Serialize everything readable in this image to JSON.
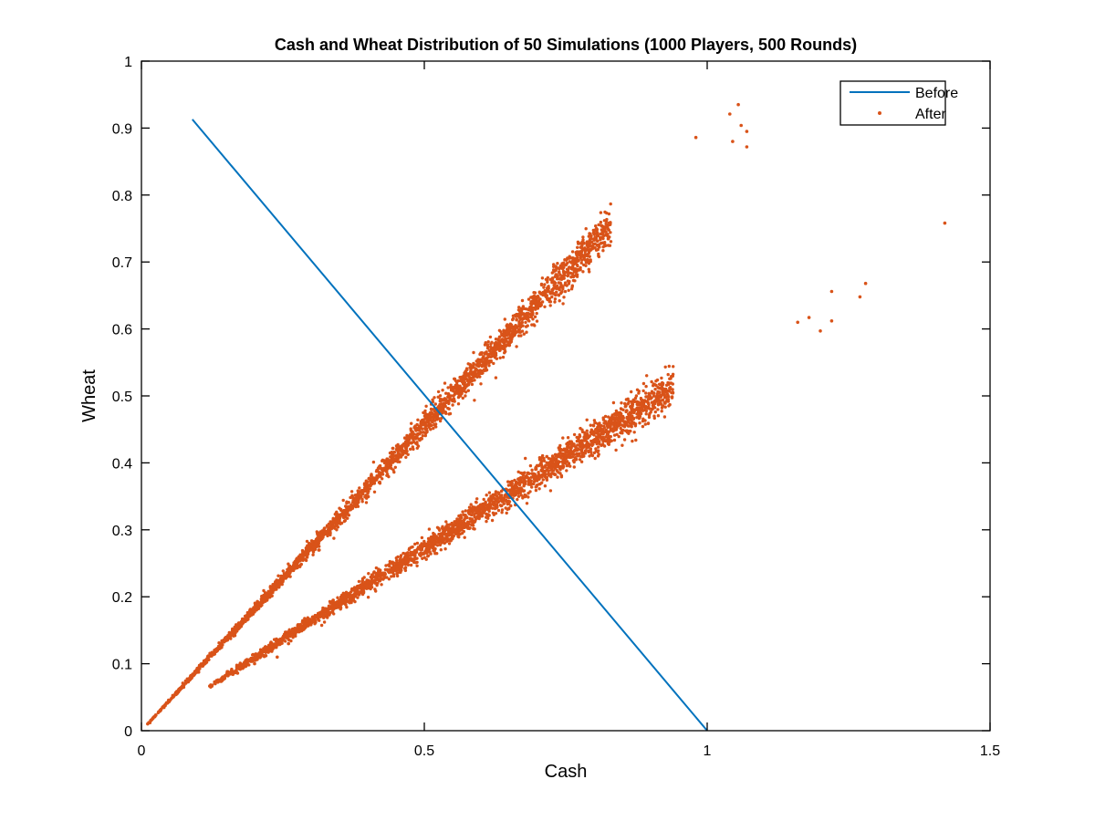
{
  "chart_data": {
    "type": "scatter",
    "title": "Cash and Wheat Distribution of 50 Simulations (1000 Players, 500 Rounds)",
    "xlabel": "Cash",
    "ylabel": "Wheat",
    "xlim": [
      0,
      1.5
    ],
    "ylim": [
      0,
      1
    ],
    "x_ticks": [
      "0",
      "0.5",
      "1",
      "1.5"
    ],
    "x_tick_values": [
      0,
      0.5,
      1,
      1.5
    ],
    "y_ticks": [
      "0",
      "0.1",
      "0.2",
      "0.3",
      "0.4",
      "0.5",
      "0.6",
      "0.7",
      "0.8",
      "0.9",
      "1"
    ],
    "y_tick_values": [
      0,
      0.1,
      0.2,
      0.3,
      0.4,
      0.5,
      0.6,
      0.7,
      0.8,
      0.9,
      1
    ],
    "grid": false,
    "legend_position": "top-right",
    "series": [
      {
        "name": "Before",
        "kind": "line",
        "color": "#0072BD",
        "x": [
          0.09,
          1.0
        ],
        "y": [
          0.913,
          0.0
        ]
      },
      {
        "name": "After",
        "kind": "scatter",
        "color": "#D95319",
        "clusters": [
          {
            "x_range": [
              0.01,
              0.83
            ],
            "slope": 0.912,
            "spread": 0.07
          },
          {
            "x_range": [
              0.12,
              0.94
            ],
            "slope": 0.545,
            "spread": 0.06
          }
        ],
        "outliers": [
          {
            "x": 1.055,
            "y": 0.935
          },
          {
            "x": 1.04,
            "y": 0.921
          },
          {
            "x": 1.06,
            "y": 0.904
          },
          {
            "x": 1.07,
            "y": 0.895
          },
          {
            "x": 1.07,
            "y": 0.872
          },
          {
            "x": 1.045,
            "y": 0.88
          },
          {
            "x": 0.98,
            "y": 0.886
          },
          {
            "x": 1.42,
            "y": 0.758
          },
          {
            "x": 1.28,
            "y": 0.668
          },
          {
            "x": 1.22,
            "y": 0.656
          },
          {
            "x": 1.27,
            "y": 0.648
          },
          {
            "x": 1.22,
            "y": 0.612
          },
          {
            "x": 1.2,
            "y": 0.597
          },
          {
            "x": 1.16,
            "y": 0.61
          },
          {
            "x": 1.18,
            "y": 0.617
          },
          {
            "x": 0.14,
            "y": 0.074
          },
          {
            "x": 0.17,
            "y": 0.086
          },
          {
            "x": 0.2,
            "y": 0.1
          },
          {
            "x": 0.24,
            "y": 0.11
          },
          {
            "x": 0.22,
            "y": 0.112
          },
          {
            "x": 0.26,
            "y": 0.13
          },
          {
            "x": 0.015,
            "y": 0.012
          }
        ]
      }
    ]
  }
}
